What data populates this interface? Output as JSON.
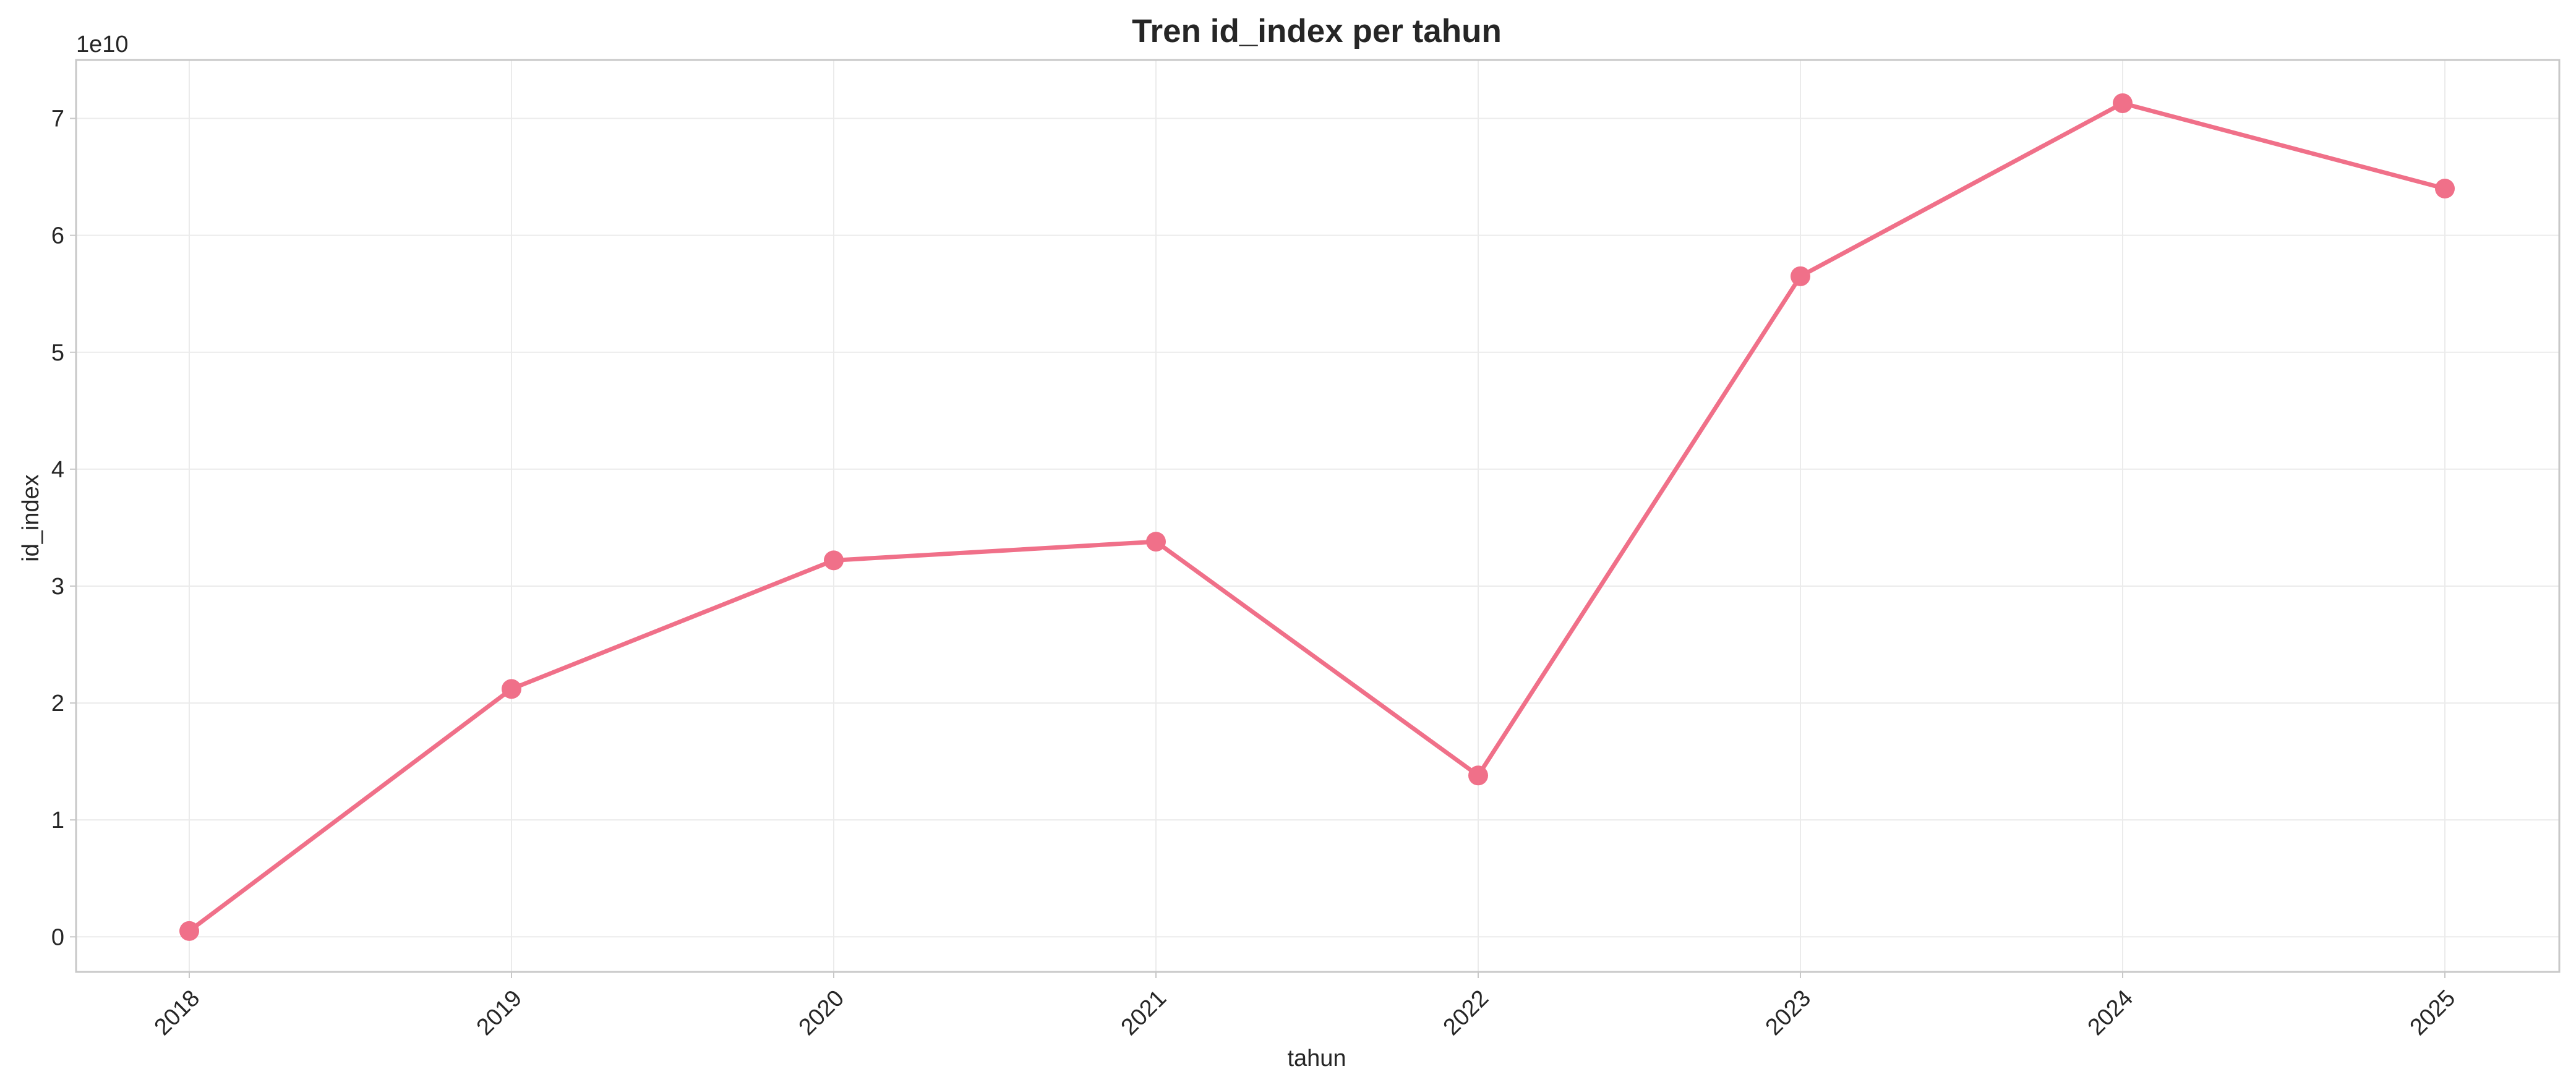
{
  "chart_data": {
    "type": "line",
    "title": "Tren id_index per tahun",
    "xlabel": "tahun",
    "ylabel": "id_index",
    "y_offset_label": "1e10",
    "x": [
      "2018",
      "2019",
      "2020",
      "2021",
      "2022",
      "2023",
      "2024",
      "2025"
    ],
    "series": [
      {
        "values": [
          500000000,
          21200000000,
          32200000000,
          33800000000,
          13800000000,
          56500000000,
          71300000000,
          64000000000
        ],
        "color": "#f07089"
      }
    ],
    "yticks": [
      0,
      1,
      2,
      3,
      4,
      5,
      6,
      7
    ],
    "ytick_scale": 10000000000,
    "ylim": [
      -3000000000,
      75000000000
    ],
    "grid": true,
    "marker": "circle"
  }
}
